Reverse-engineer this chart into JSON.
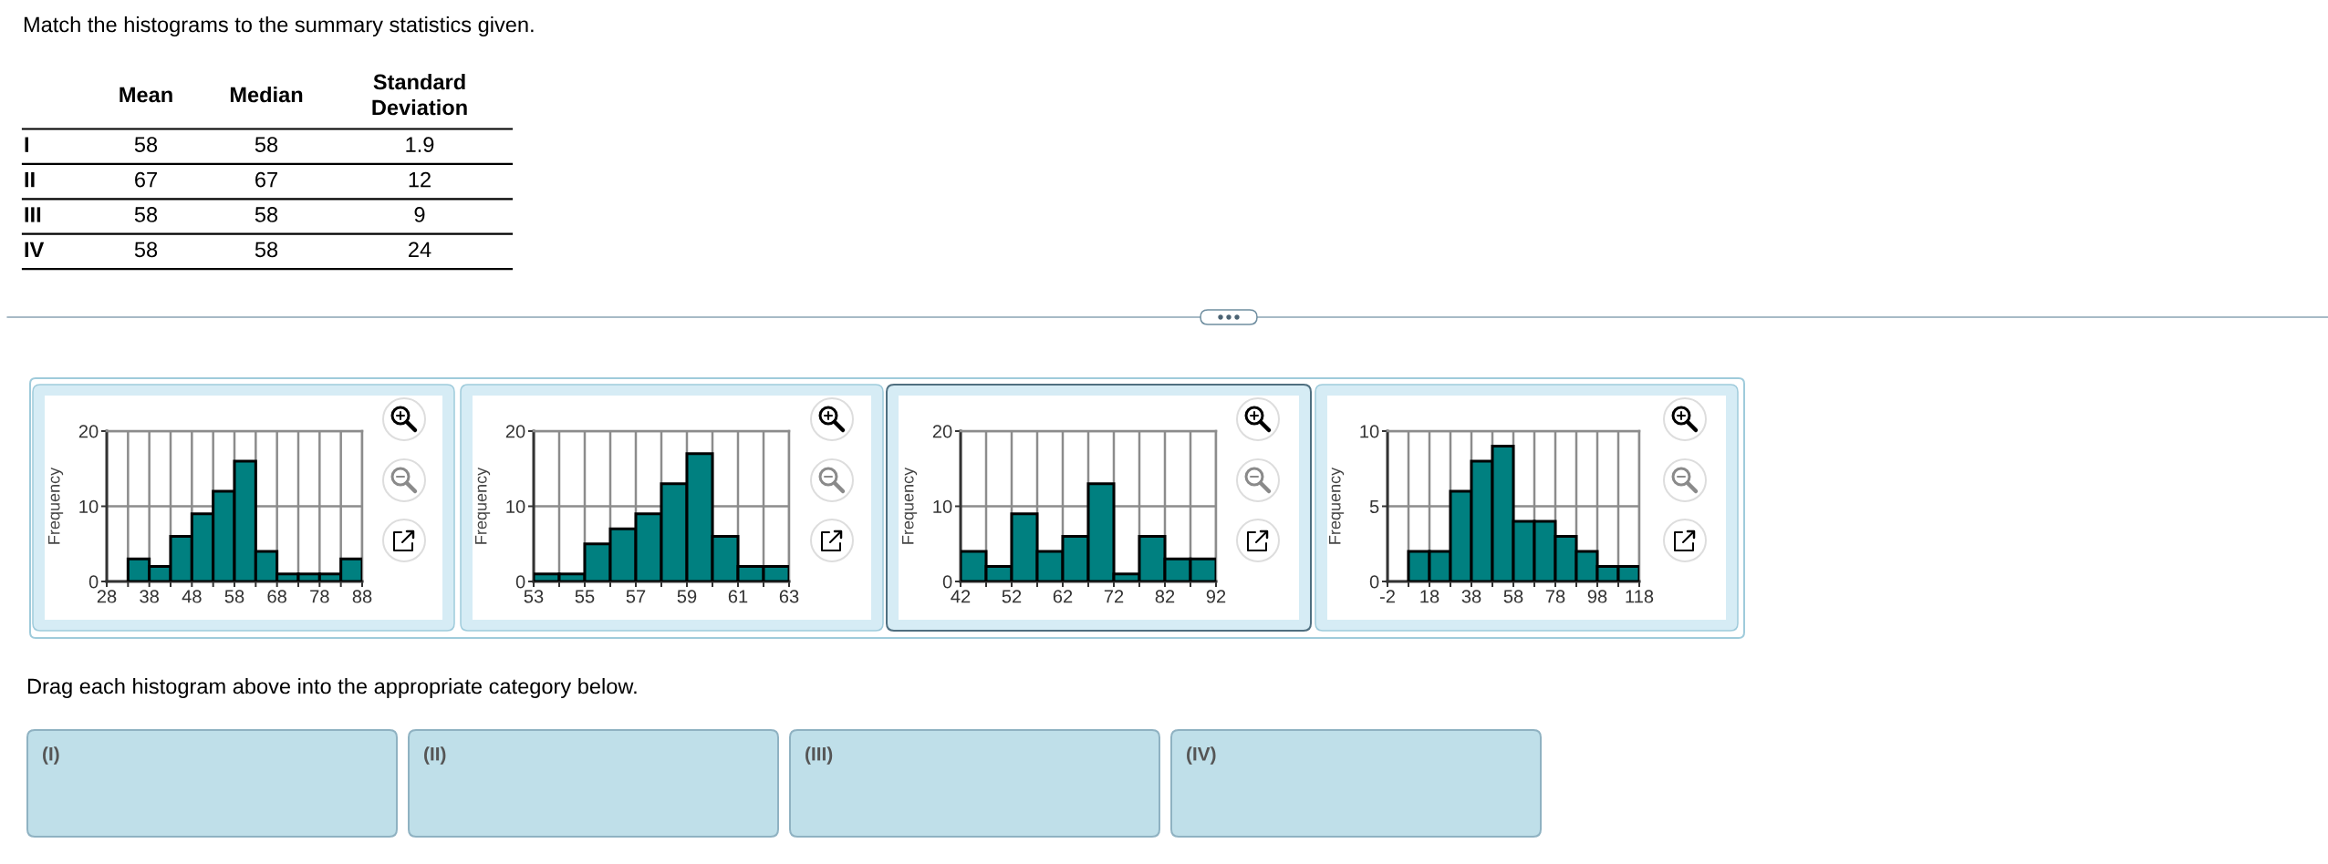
{
  "chart_data": [
    {
      "type": "other",
      "title": "Match the histograms to the summary statistics given.",
      "categories": [
        "I",
        "II",
        "III",
        "IV"
      ],
      "series": [
        {
          "name": "Mean",
          "values": [
            58,
            67,
            58,
            58
          ]
        },
        {
          "name": "Median",
          "values": [
            58,
            67,
            58,
            58
          ]
        },
        {
          "name": "Standard\nDeviation",
          "values": [
            1.9,
            12,
            9,
            24
          ]
        }
      ],
      "data_labels": true
    },
    {
      "type": "histogram",
      "ylabel": "Frequency",
      "bins": [
        33,
        38,
        43,
        48,
        53,
        58,
        63,
        68,
        73,
        78,
        83,
        88
      ],
      "values": [
        3,
        2,
        6,
        9,
        12,
        16,
        4,
        1,
        1,
        1,
        3
      ],
      "color": "#008080",
      "xlim": [
        28,
        88
      ],
      "xticks": [
        28,
        {
          "value": 33,
          "label": null
        },
        38,
        {
          "value": 43,
          "label": null
        },
        48,
        {
          "value": 53,
          "label": null
        },
        58,
        {
          "value": 63,
          "label": null
        },
        68,
        {
          "value": 73,
          "label": null
        },
        78,
        {
          "value": 83,
          "label": null
        },
        88
      ],
      "ylim": [
        0,
        20
      ],
      "yticks": [
        0,
        10,
        20
      ],
      "grid": true
    },
    {
      "type": "histogram",
      "ylabel": "Frequency",
      "bins": [
        53,
        54,
        55,
        56,
        57,
        58,
        59,
        60,
        61,
        62,
        63
      ],
      "values": [
        1,
        1,
        5,
        7,
        9,
        13,
        17,
        6,
        2,
        2
      ],
      "color": "#008080",
      "xlim": [
        53,
        63
      ],
      "xticks": [
        53,
        {
          "value": 54,
          "label": null
        },
        55,
        {
          "value": 56,
          "label": null
        },
        57,
        {
          "value": 58,
          "label": null
        },
        59,
        {
          "value": 60,
          "label": null
        },
        61,
        {
          "value": 62,
          "label": null
        },
        63
      ],
      "ylim": [
        0,
        20
      ],
      "yticks": [
        0,
        10,
        20
      ],
      "grid": true
    },
    {
      "type": "histogram",
      "ylabel": "Frequency",
      "bins": [
        42,
        47,
        52,
        57,
        62,
        67,
        72,
        77,
        82,
        87,
        92
      ],
      "values": [
        4,
        2,
        9,
        4,
        6,
        13,
        1,
        6,
        3,
        3
      ],
      "color": "#008080",
      "xlim": [
        42,
        92
      ],
      "xticks": [
        42,
        {
          "value": 47,
          "label": null
        },
        52,
        {
          "value": 57,
          "label": null
        },
        62,
        {
          "value": 67,
          "label": null
        },
        72,
        {
          "value": 77,
          "label": null
        },
        82,
        {
          "value": 87,
          "label": null
        },
        92
      ],
      "ylim": [
        0,
        20
      ],
      "yticks": [
        0,
        10,
        20
      ],
      "grid": true
    },
    {
      "type": "histogram",
      "ylabel": "Frequency",
      "bins": [
        8,
        18,
        28,
        38,
        48,
        58,
        68,
        78,
        88,
        98,
        108,
        118
      ],
      "values": [
        2,
        2,
        6,
        8,
        9,
        4,
        4,
        3,
        2,
        1,
        1
      ],
      "color": "#008080",
      "xlim": [
        -2,
        118
      ],
      "xticks": [
        -2,
        {
          "value": 8,
          "label": null
        },
        18,
        {
          "value": 28,
          "label": null
        },
        38,
        {
          "value": 48,
          "label": null
        },
        58,
        {
          "value": 68,
          "label": null
        },
        78,
        {
          "value": 88,
          "label": null
        },
        98,
        {
          "value": 108,
          "label": null
        },
        118
      ],
      "ylim": [
        0,
        10
      ],
      "yticks": [
        0,
        5,
        10
      ],
      "grid": true
    },
    {
      "type": "other",
      "title": "Drag each histogram above into the appropriate category below.",
      "categories": [
        "(I)",
        "(II)",
        "(III)",
        "(IV)"
      ]
    }
  ]
}
